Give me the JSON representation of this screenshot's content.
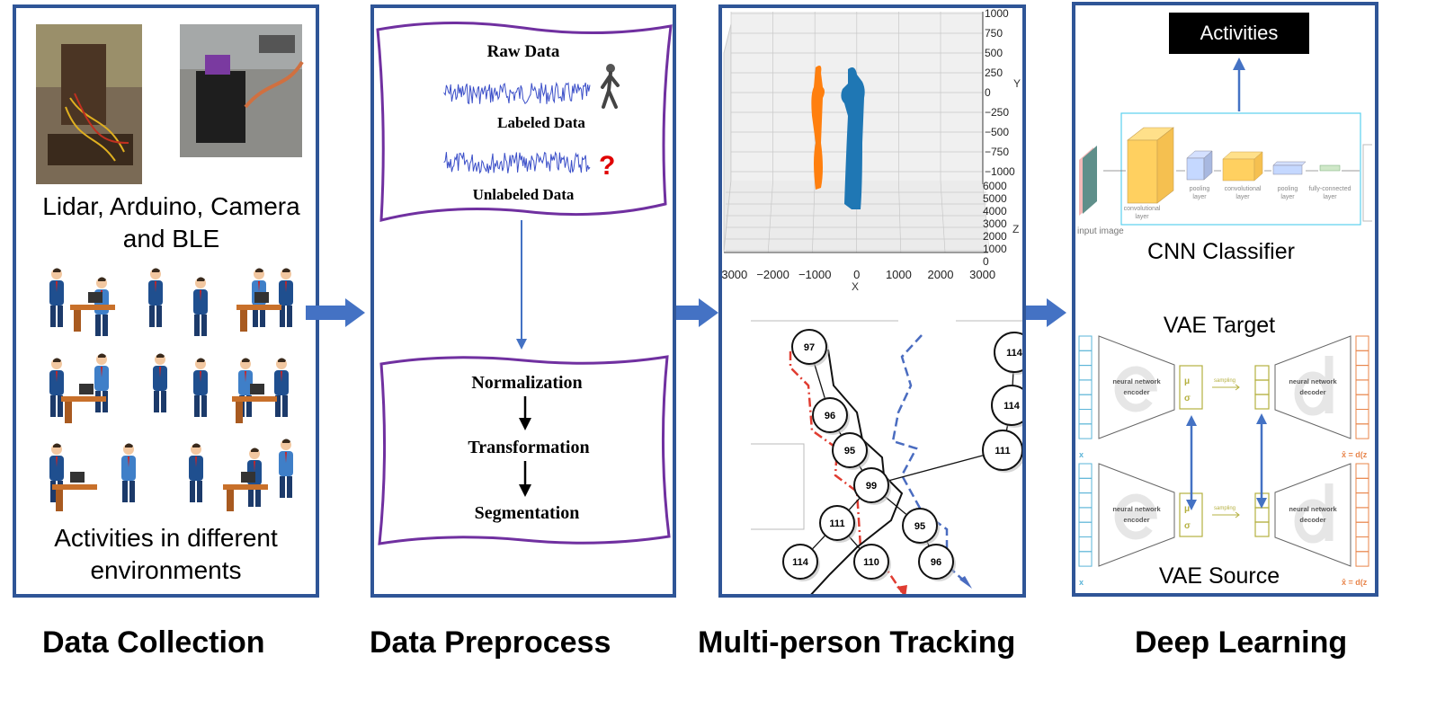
{
  "stages": [
    {
      "title": "Data Collection"
    },
    {
      "title": "Data Preprocess"
    },
    {
      "title": "Multi-person Tracking"
    },
    {
      "title": "Deep Learning"
    }
  ],
  "collection": {
    "hardware_caption_line1": "Lidar, Arduino, Camera",
    "hardware_caption_line2": "and BLE",
    "activities_caption_line1": "Activities in different",
    "activities_caption_line2": "environments"
  },
  "preprocess": {
    "raw_data": "Raw Data",
    "labeled_data": "Labeled Data",
    "unlabeled_data": "Unlabeled Data",
    "question_mark": "?",
    "steps": [
      "Normalization",
      "Transformation",
      "Segmentation"
    ]
  },
  "tracking": {
    "plot": {
      "x_ticks": [
        "−3000",
        "−2000",
        "−1000",
        "0",
        "1000",
        "2000",
        "3000"
      ],
      "x_label": "X",
      "y_ticks": [
        "1000",
        "750",
        "500",
        "250",
        "0",
        "−250",
        "−500",
        "−750",
        "−1000"
      ],
      "y_label": "Y",
      "z_ticks": [
        "6000",
        "5000",
        "4000",
        "3000",
        "2000",
        "1000",
        "0"
      ],
      "z_label": "Z",
      "colors": {
        "person_a": "#ff7f0e",
        "person_b": "#1f77b4"
      }
    },
    "graph_nodes": [
      "97",
      "96",
      "95",
      "99",
      "111",
      "114",
      "110",
      "114",
      "114",
      "111",
      "95",
      "96"
    ]
  },
  "deep_learning": {
    "activities_label": "Activities",
    "cnn": {
      "input_label": "input image",
      "layers": [
        "convolutional layer",
        "pooling layer",
        "convolutional layer",
        "pooling layer",
        "fully-connected layer"
      ],
      "title": "CNN Classifier"
    },
    "vae_target_title": "VAE Target",
    "vae_source_title": "VAE Source",
    "encoder_label_1": "neural network",
    "encoder_label_2": "encoder",
    "decoder_label_1": "neural network",
    "decoder_label_2": "decoder",
    "mu": "μ",
    "sigma": "σ",
    "sub_x": "x",
    "sampling": "sampling",
    "input_symbol": "x",
    "output_symbol": "x̂ = d(z"
  }
}
